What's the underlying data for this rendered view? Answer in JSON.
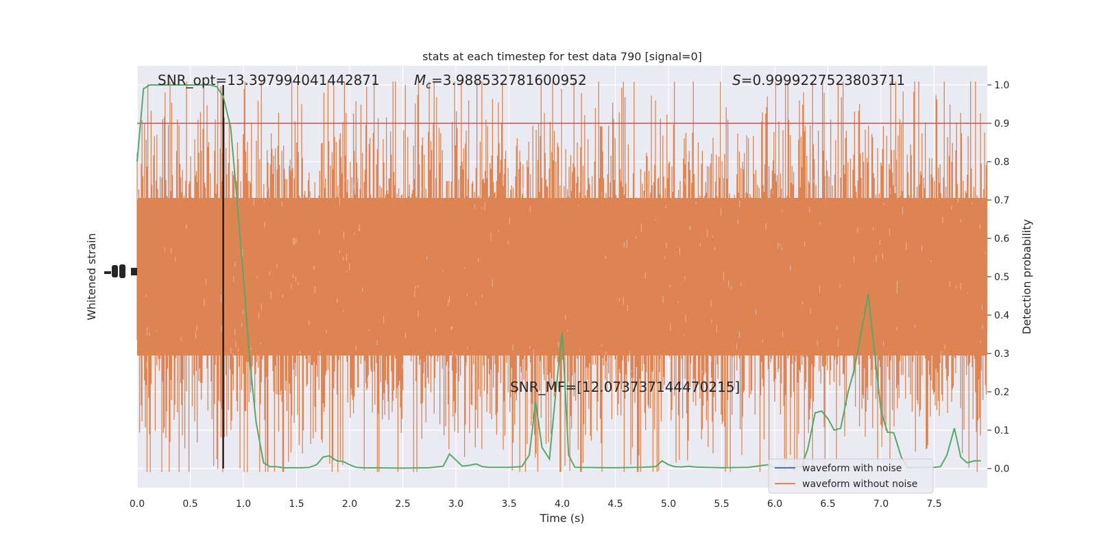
{
  "chart_data": {
    "type": "line",
    "title": "stats at each timestep for test data 790 [signal=0]",
    "xlabel": "Time (s)",
    "ylabel_left": "Whitened strain",
    "ylabel_right": "Detection probability",
    "xlim": [
      0.0,
      8.0
    ],
    "ylim_right": [
      -0.05,
      1.05
    ],
    "x_ticks": [
      "0.0",
      "0.5",
      "1.0",
      "1.5",
      "2.0",
      "2.5",
      "3.0",
      "3.5",
      "4.0",
      "4.5",
      "5.0",
      "5.5",
      "6.0",
      "6.5",
      "7.0",
      "7.5"
    ],
    "y_ticks_right": [
      "0.0",
      "0.1",
      "0.2",
      "0.3",
      "0.4",
      "0.5",
      "0.6",
      "0.7",
      "0.8",
      "0.9",
      "1.0"
    ],
    "grid": true,
    "legend_position": "lower-right",
    "annotations": {
      "snr_opt": "SNR_opt=13.397994041442871",
      "mc_prefix": "M",
      "mc_sub": "c",
      "mc_value": "=3.988532781600952",
      "s_prefix": "S",
      "s_value": "=0.9999227523803711",
      "snr_mf": "SNR_MF=[12.073737144470215]"
    },
    "threshold": 0.9,
    "marker_time": 0.81,
    "series": [
      {
        "name": "waveform with noise",
        "color": "#4c72b0",
        "axis": "left",
        "x": [],
        "values": []
      },
      {
        "name": "waveform without noise",
        "color": "#dd8452",
        "axis": "left",
        "x": [],
        "values": []
      },
      {
        "axis": "right",
        "color": "#55a868",
        "x": [
          0.0,
          0.06,
          0.12,
          0.19,
          0.25,
          0.31,
          0.38,
          0.44,
          0.5,
          0.56,
          0.62,
          0.69,
          0.75,
          0.81,
          0.88,
          0.94,
          1.0,
          1.06,
          1.12,
          1.19,
          1.25,
          1.31,
          1.38,
          1.44,
          1.5,
          1.56,
          1.62,
          1.69,
          1.75,
          1.81,
          1.88,
          1.94,
          2.0,
          2.06,
          2.12,
          2.5,
          2.75,
          2.88,
          2.94,
          3.0,
          3.06,
          3.12,
          3.19,
          3.25,
          3.31,
          3.5,
          3.62,
          3.69,
          3.75,
          3.81,
          3.88,
          3.94,
          4.0,
          4.06,
          4.12,
          4.5,
          4.75,
          4.88,
          4.94,
          5.0,
          5.06,
          5.12,
          5.19,
          5.25,
          5.5,
          5.75,
          5.88,
          5.94,
          6.0,
          6.12,
          6.25,
          6.31,
          6.38,
          6.44,
          6.5,
          6.56,
          6.62,
          6.69,
          6.75,
          6.81,
          6.88,
          6.94,
          7.0,
          7.06,
          7.12,
          7.19,
          7.25,
          7.5,
          7.56,
          7.62,
          7.69,
          7.75,
          7.81,
          7.88,
          7.94
        ],
        "values": [
          0.8,
          0.99,
          1.0,
          1.0,
          1.0,
          1.0,
          1.0,
          1.0,
          1.0,
          1.0,
          1.0,
          1.0,
          0.995,
          0.97,
          0.89,
          0.7,
          0.5,
          0.28,
          0.12,
          0.015,
          0.005,
          0.005,
          0.002,
          0.002,
          0.002,
          0.002,
          0.003,
          0.01,
          0.03,
          0.033,
          0.02,
          0.018,
          0.01,
          0.003,
          0.002,
          0.001,
          0.002,
          0.006,
          0.038,
          0.022,
          0.006,
          0.008,
          0.012,
          0.005,
          0.003,
          0.003,
          0.005,
          0.035,
          0.175,
          0.055,
          0.025,
          0.2,
          0.355,
          0.035,
          0.003,
          0.002,
          0.003,
          0.005,
          0.02,
          0.01,
          0.005,
          0.004,
          0.006,
          0.004,
          0.002,
          0.003,
          0.008,
          0.01,
          0.003,
          0.004,
          0.005,
          0.05,
          0.145,
          0.15,
          0.13,
          0.1,
          0.105,
          0.2,
          0.26,
          0.35,
          0.455,
          0.3,
          0.15,
          0.095,
          0.093,
          0.03,
          0.002,
          0.003,
          0.005,
          0.035,
          0.105,
          0.03,
          0.015,
          0.02,
          0.02
        ]
      }
    ]
  }
}
